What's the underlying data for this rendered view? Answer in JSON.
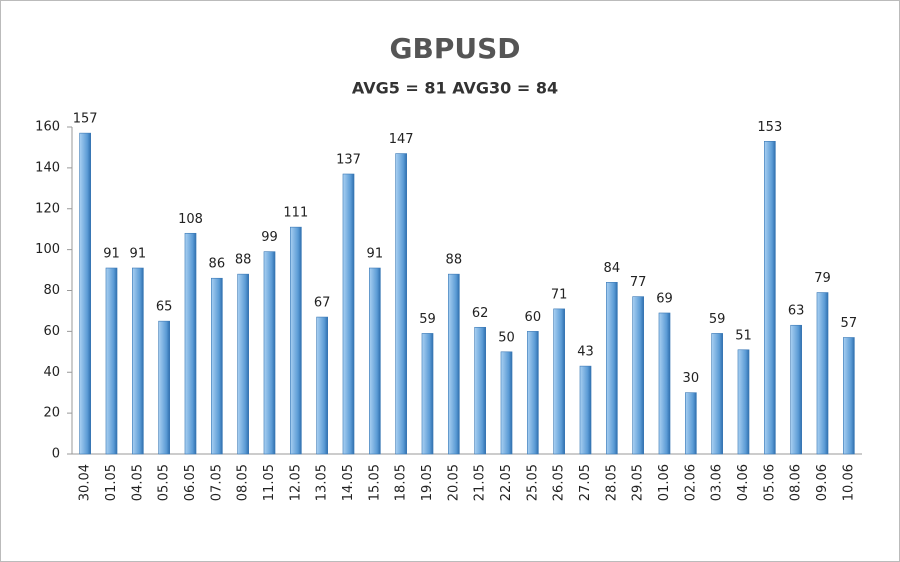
{
  "chart_data": {
    "type": "bar",
    "title": "GBPUSD",
    "subtitle": "AVG5 = 81 AVG30 = 84",
    "categories": [
      "30.04",
      "01.05",
      "04.05",
      "05.05",
      "06.05",
      "07.05",
      "08.05",
      "11.05",
      "12.05",
      "13.05",
      "14.05",
      "15.05",
      "18.05",
      "19.05",
      "20.05",
      "21.05",
      "22.05",
      "25.05",
      "26.05",
      "27.05",
      "28.05",
      "29.05",
      "01.06",
      "02.06",
      "03.06",
      "04.06",
      "05.06",
      "08.06",
      "09.06",
      "10.06"
    ],
    "values": [
      157,
      91,
      91,
      65,
      108,
      86,
      88,
      99,
      111,
      67,
      137,
      91,
      147,
      59,
      88,
      62,
      50,
      60,
      71,
      43,
      84,
      77,
      69,
      30,
      59,
      51,
      153,
      63,
      79,
      57
    ],
    "color": "#5b9bd5",
    "ylim": [
      0,
      160
    ],
    "yticks": [
      0,
      20,
      40,
      60,
      80,
      100,
      120,
      140,
      160
    ],
    "grid": false
  }
}
